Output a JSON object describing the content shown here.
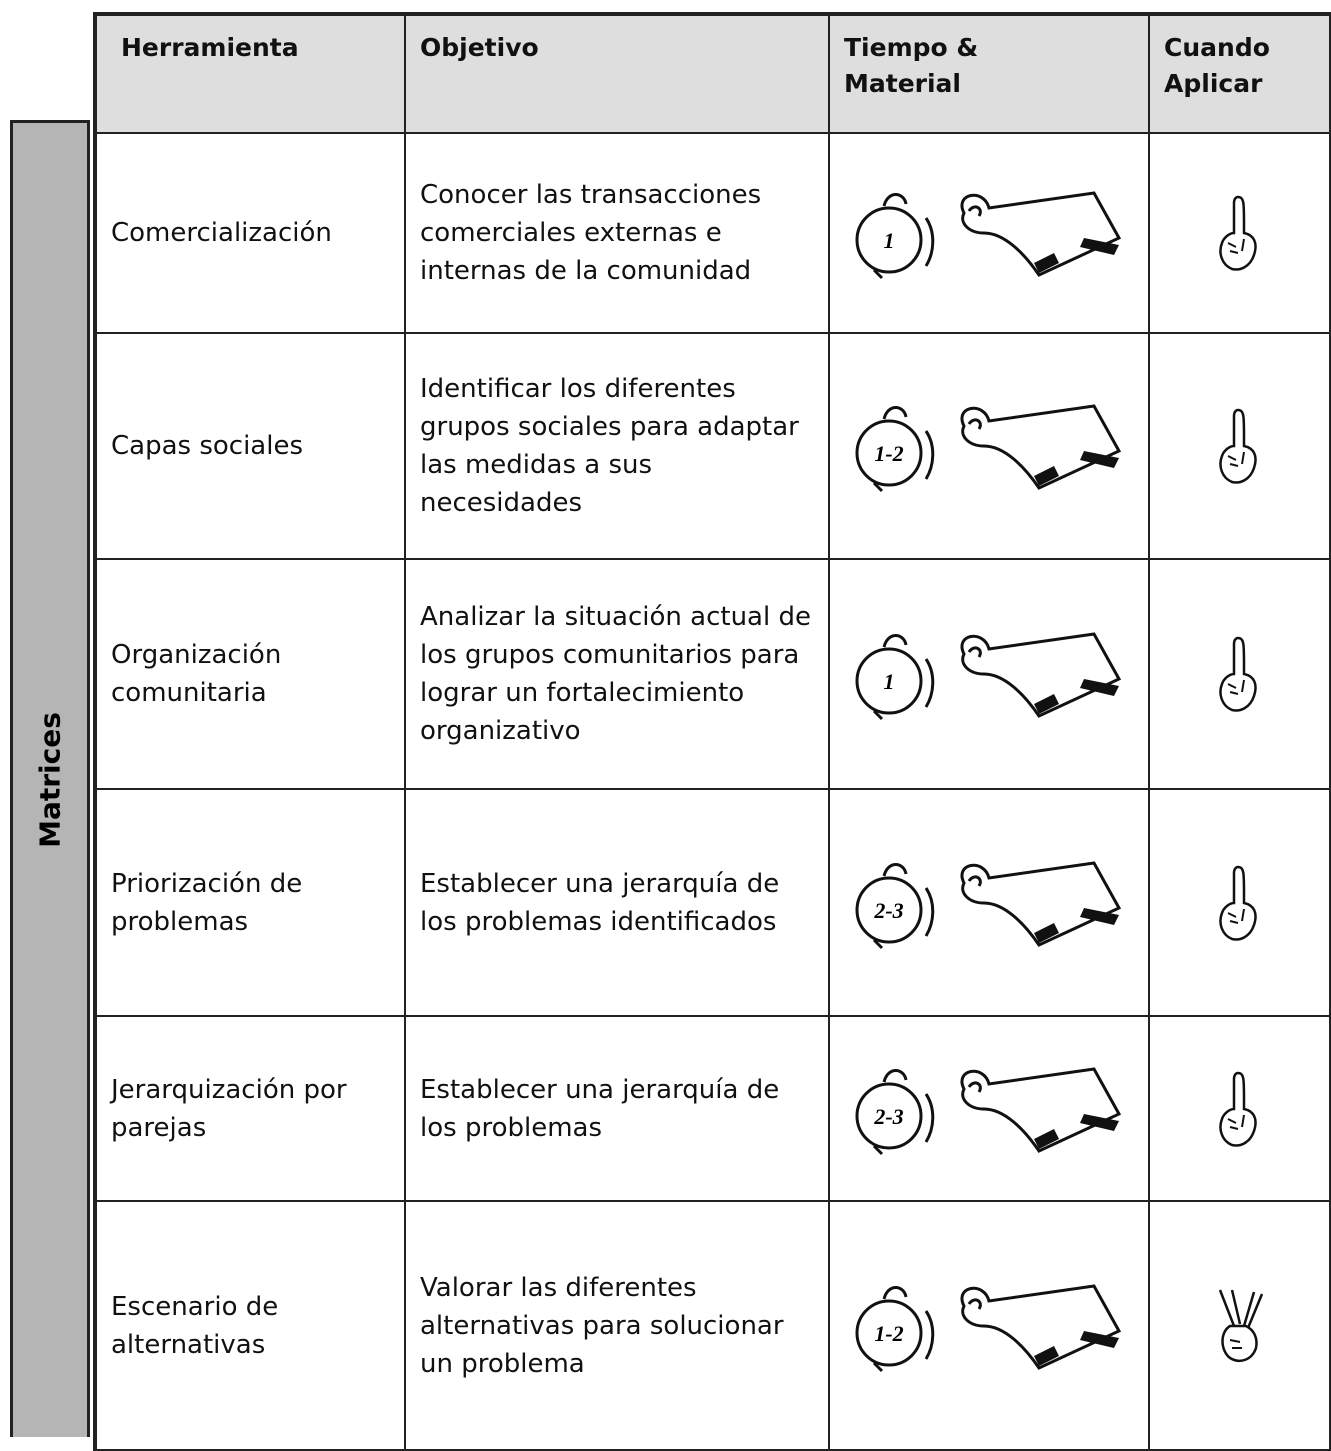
{
  "header": {
    "columns": [
      "Herramienta",
      "Objetivo",
      "Tiempo & Material",
      "Cuando Aplicar"
    ]
  },
  "section_label": "Matrices",
  "rows": [
    {
      "tool": "Comercialización",
      "objective": "Conocer las transacciones comerciales externas e internas de la comunidad",
      "time": "1"
    },
    {
      "tool": "Capas sociales",
      "objective": "Identificar los diferentes grupos sociales para adaptar las medidas a sus necesidades",
      "time": "1-2"
    },
    {
      "tool": "Organización comunitaria",
      "objective": "Analizar la situación actual de los grupos comunitarios para lograr un fortalecimiento organizativo",
      "time": "1"
    },
    {
      "tool": "Priorización de problemas",
      "objective": "Establecer una jerarquía de los problemas identificados",
      "time": "2-3"
    },
    {
      "tool": "Jerarquización por parejas",
      "objective": "Establecer una jerarquía de los problemas",
      "time": "2-3"
    },
    {
      "tool": "Escenario de alternativas",
      "objective": "Valorar las diferentes alternativas para solucionar un problema",
      "time": "1-2"
    }
  ]
}
